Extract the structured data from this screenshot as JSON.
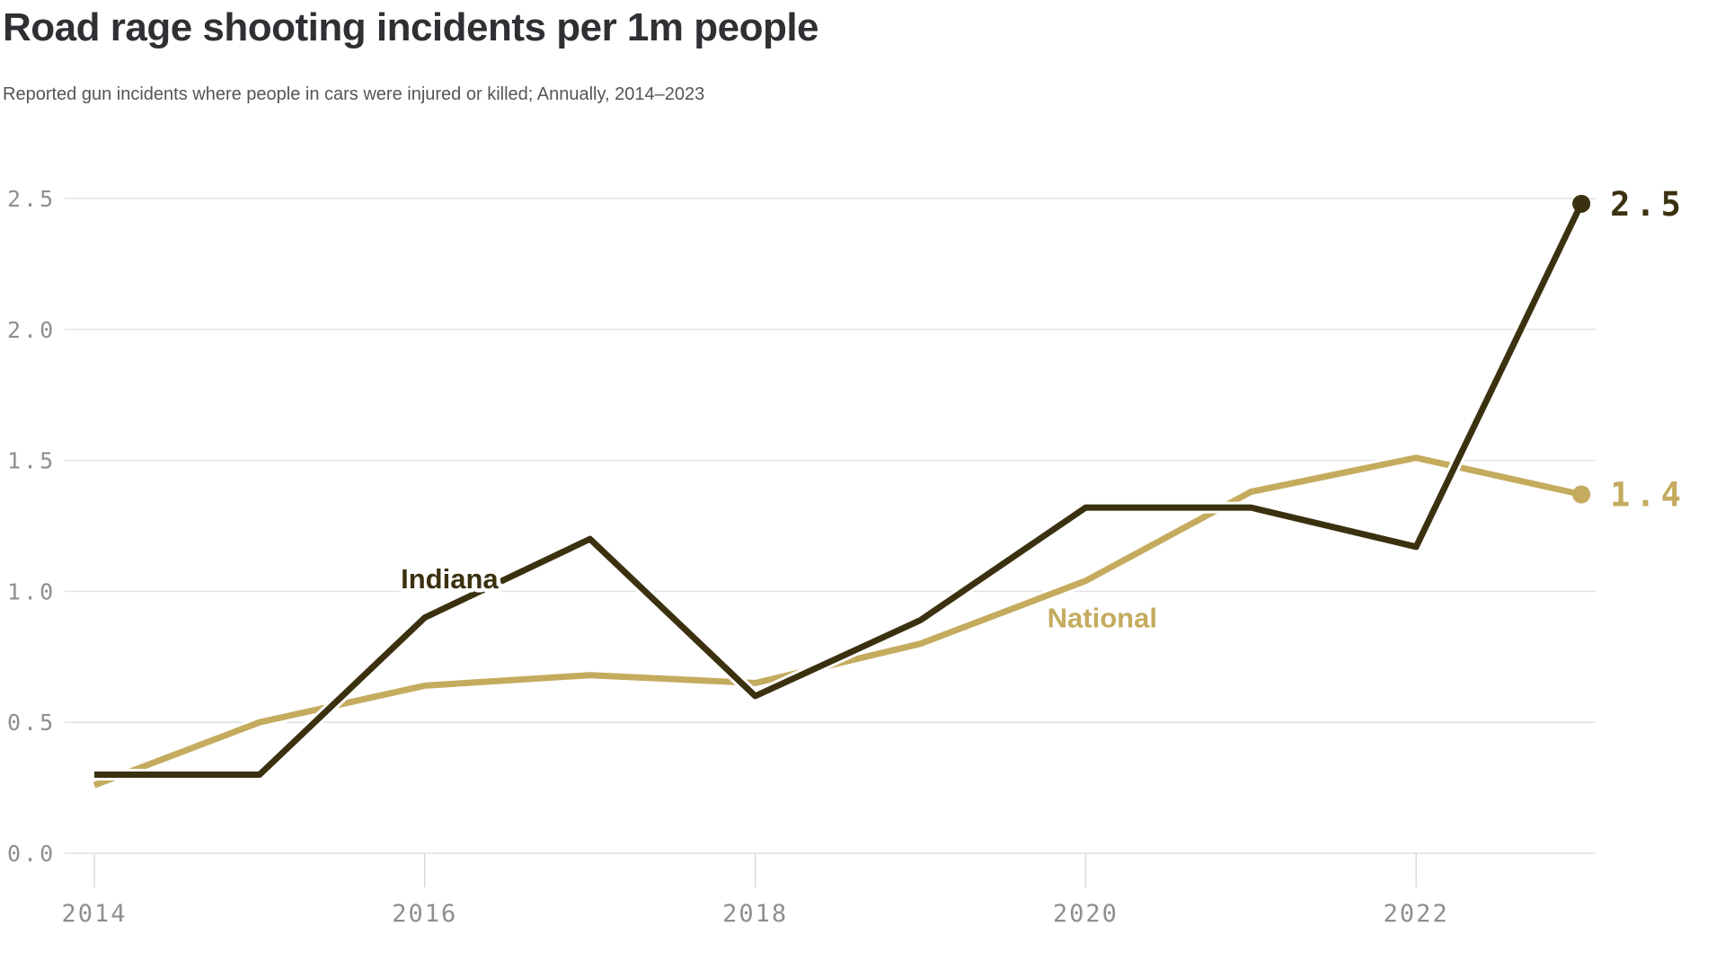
{
  "header": {
    "title": "Road rage shooting incidents per 1m people",
    "subtitle": "Reported gun incidents where people in cars were injured or killed; Annually, 2014–2023"
  },
  "chart_data": {
    "type": "line",
    "x": [
      2014,
      2015,
      2016,
      2017,
      2018,
      2019,
      2020,
      2021,
      2022,
      2023
    ],
    "series": [
      {
        "name": "Indiana",
        "color": "#3b3110",
        "values": [
          0.3,
          0.3,
          0.9,
          1.2,
          0.6,
          0.89,
          1.32,
          1.32,
          1.17,
          2.48
        ],
        "end_label": "2.5"
      },
      {
        "name": "National",
        "color": "#c4ab5e",
        "values": [
          0.26,
          0.5,
          0.64,
          0.68,
          0.65,
          0.8,
          1.04,
          1.38,
          1.51,
          1.37
        ],
        "end_label": "1.4"
      }
    ],
    "title": "Road rage shooting incidents per 1m people",
    "xlabel": "",
    "ylabel": "",
    "ylim": [
      0,
      2.5
    ],
    "xlim": [
      2014,
      2023
    ],
    "y_ticks": [
      0.0,
      0.5,
      1.0,
      1.5,
      2.0,
      2.5
    ],
    "y_tick_labels": [
      "0.0",
      "0.5",
      "1.0",
      "1.5",
      "2.0",
      "2.5"
    ],
    "x_tick_years": [
      2014,
      2016,
      2018,
      2020,
      2022
    ],
    "x_tick_labels": [
      "2014",
      "2016",
      "2018",
      "2020",
      "2022"
    ],
    "grid": "horizontal",
    "legend_position": "inline-labels",
    "annotations": [
      {
        "text": "Indiana",
        "year": 2016.15,
        "value": 1.05,
        "color": "#3b3110"
      },
      {
        "text": "National",
        "year": 2020.1,
        "value": 0.9,
        "color": "#c4ab5e"
      }
    ],
    "colors": {
      "grid": "#e2e2e2",
      "tick": "#d9d9d9",
      "axis_text": "#8f8f8f",
      "title_text": "#2f3033",
      "subtitle_text": "#555555"
    }
  }
}
